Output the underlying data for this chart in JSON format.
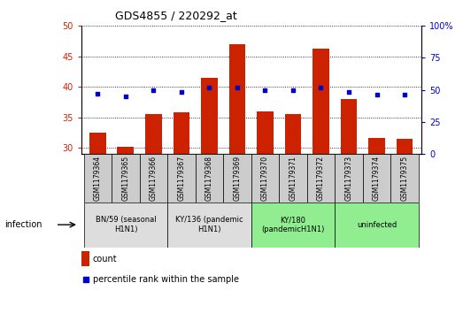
{
  "title": "GDS4855 / 220292_at",
  "samples": [
    "GSM1179364",
    "GSM1179365",
    "GSM1179366",
    "GSM1179367",
    "GSM1179368",
    "GSM1179369",
    "GSM1179370",
    "GSM1179371",
    "GSM1179372",
    "GSM1179373",
    "GSM1179374",
    "GSM1179375"
  ],
  "counts": [
    32.5,
    30.2,
    35.5,
    35.8,
    41.5,
    47.0,
    36.0,
    35.5,
    46.2,
    38.0,
    31.7,
    31.5
  ],
  "pct_values": [
    47,
    45,
    50,
    48.5,
    51.5,
    52,
    50,
    50,
    52,
    48.5,
    46,
    46.5
  ],
  "bar_color": "#CC2200",
  "dot_color": "#0000CC",
  "ylim_left": [
    29,
    50
  ],
  "ylim_right": [
    0,
    100
  ],
  "yticks_left": [
    30,
    35,
    40,
    45,
    50
  ],
  "yticks_right": [
    0,
    25,
    50,
    75,
    100
  ],
  "group_labels": [
    "BN/59 (seasonal\nH1N1)",
    "KY/136 (pandemic\nH1N1)",
    "KY/180\n(pandemicH1N1)",
    "uninfected"
  ],
  "group_ranges": [
    [
      0,
      3
    ],
    [
      3,
      6
    ],
    [
      6,
      9
    ],
    [
      9,
      12
    ]
  ],
  "group_colors": [
    "#DDDDDD",
    "#DDDDDD",
    "#90EE90",
    "#90EE90"
  ],
  "infection_label": "infection",
  "legend_count_label": "count",
  "legend_percentile_label": "percentile rank within the sample",
  "background_color": "#FFFFFF",
  "sample_box_color": "#CCCCCC"
}
